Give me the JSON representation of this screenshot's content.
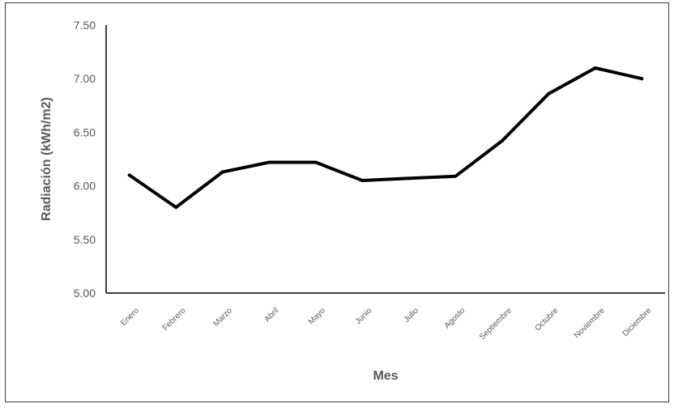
{
  "chart_data": {
    "type": "line",
    "title": "",
    "xlabel": "Mes",
    "ylabel": "Radiación (kWh/m2)",
    "categories": [
      "Enero",
      "Febrero",
      "Marzo",
      "Abril",
      "Mayo",
      "Junio",
      "Julio",
      "Agosto",
      "Septiembre",
      "Octubre",
      "Noviembre",
      "Diciembre"
    ],
    "series": [
      {
        "values": [
          6.1,
          5.8,
          6.13,
          6.22,
          6.22,
          6.05,
          6.07,
          6.09,
          6.42,
          6.86,
          7.1,
          7.0
        ],
        "color": "#000000"
      }
    ],
    "ylim": [
      5.0,
      7.5
    ],
    "yticks": [
      "5.00",
      "5.50",
      "6.00",
      "6.50",
      "7.00",
      "7.50"
    ],
    "ytick_values": [
      5.0,
      5.5,
      6.0,
      6.5,
      7.0,
      7.5
    ],
    "grid": false,
    "legend": "none",
    "colors": {
      "axis": "#000000",
      "text": "#595959",
      "frame": "#3a3a3a"
    }
  }
}
